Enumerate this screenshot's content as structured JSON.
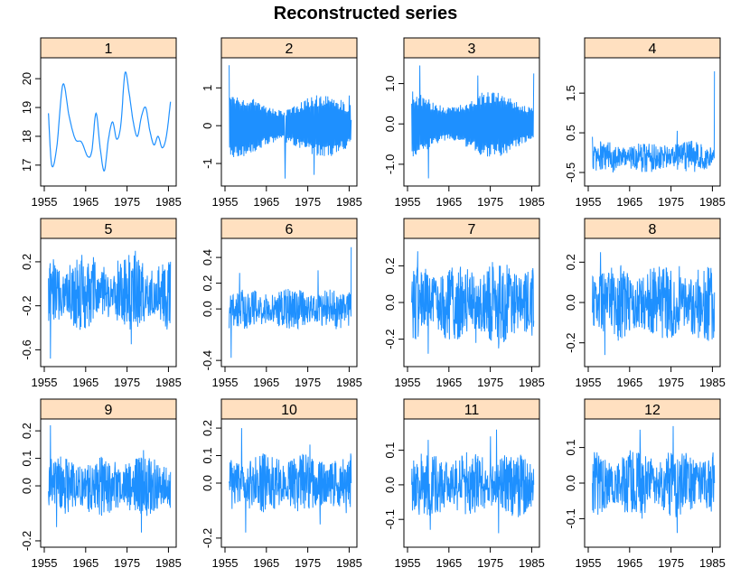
{
  "title": "Reconstructed series",
  "colors": {
    "line": "#1E90FF",
    "strip": "#FFE0C0",
    "axis": "#000000"
  },
  "chart_data": {
    "type": "line",
    "title": "Reconstructed series",
    "x_ticks": [
      "1955",
      "1965",
      "1975",
      "1985"
    ],
    "x_range": [
      1955,
      1986
    ],
    "panels": [
      {
        "label": "1",
        "ylim": [
          16.4,
          20.6
        ],
        "y_ticks": [
          "17",
          "18",
          "19",
          "20"
        ],
        "knots": [
          [
            1956.0,
            18.8
          ],
          [
            1956.8,
            17.0
          ],
          [
            1958.0,
            17.6
          ],
          [
            1959.5,
            19.8
          ],
          [
            1961.0,
            18.7
          ],
          [
            1962.5,
            17.9
          ],
          [
            1964.0,
            17.8
          ],
          [
            1965.5,
            17.3
          ],
          [
            1966.5,
            17.5
          ],
          [
            1967.5,
            18.8
          ],
          [
            1968.5,
            17.6
          ],
          [
            1969.5,
            16.8
          ],
          [
            1970.5,
            17.9
          ],
          [
            1971.5,
            18.5
          ],
          [
            1972.5,
            17.9
          ],
          [
            1973.5,
            18.4
          ],
          [
            1974.5,
            20.2
          ],
          [
            1975.5,
            19.5
          ],
          [
            1976.5,
            18.5
          ],
          [
            1977.5,
            18.0
          ],
          [
            1978.5,
            18.7
          ],
          [
            1979.5,
            19.0
          ],
          [
            1980.5,
            18.2
          ],
          [
            1981.5,
            17.7
          ],
          [
            1982.5,
            18.0
          ],
          [
            1983.5,
            17.6
          ],
          [
            1984.5,
            18.0
          ],
          [
            1985.5,
            19.2
          ]
        ]
      },
      {
        "label": "2",
        "ylim": [
          -1.5,
          1.7
        ],
        "y_ticks": [
          "-1",
          "0",
          "1"
        ],
        "osc": {
          "amp": 0.85,
          "mean": 0.0,
          "start": 1.6,
          "end": 0.15,
          "spikes": [
            [
              1969.5,
              -1.4
            ],
            [
              1976.5,
              -1.3
            ],
            [
              1985.0,
              0.8
            ]
          ]
        }
      },
      {
        "label": "3",
        "ylim": [
          -1.45,
          1.55
        ],
        "y_ticks": [
          "-1.0",
          "0.0",
          "1.0"
        ],
        "osc": {
          "amp": 0.85,
          "mean": 0.0,
          "start": 0.5,
          "end": 1.25,
          "spikes": [
            [
              1958.0,
              1.45
            ],
            [
              1960.0,
              -1.35
            ],
            [
              1972.0,
              1.2
            ]
          ]
        }
      },
      {
        "label": "4",
        "ylim": [
          -0.75,
          2.3
        ],
        "y_ticks": [
          "-0.5",
          "0.5",
          "1.5"
        ],
        "noise": {
          "amp": 0.25,
          "mean": -0.1,
          "start": 0.4,
          "end": 2.05,
          "spikes": [
            [
              1976.5,
              0.55
            ],
            [
              1961.0,
              -0.5
            ]
          ]
        }
      },
      {
        "label": "5",
        "ylim": [
          -0.72,
          0.38
        ],
        "y_ticks": [
          "-0.6",
          "-0.2",
          "0.2"
        ],
        "noise": {
          "amp": 0.22,
          "mean": -0.08,
          "start": 0.05,
          "end": 0.2,
          "spikes": [
            [
              1956.5,
              -0.68
            ],
            [
              1977.0,
              0.3
            ],
            [
              1976.0,
              -0.55
            ]
          ]
        }
      },
      {
        "label": "6",
        "ylim": [
          -0.42,
          0.52
        ],
        "y_ticks": [
          "-0.4",
          "0.0",
          "0.2",
          "0.4"
        ],
        "noise": {
          "amp": 0.1,
          "mean": 0.0,
          "start": -0.15,
          "end": 0.48,
          "spikes": [
            [
              1956.5,
              -0.38
            ],
            [
              1958.5,
              0.28
            ],
            [
              1977.5,
              0.3
            ]
          ]
        }
      },
      {
        "label": "7",
        "ylim": [
          -0.33,
          0.33
        ],
        "y_ticks": [
          "-0.2",
          "0.0",
          "0.2"
        ],
        "noise": {
          "amp": 0.14,
          "mean": 0.0,
          "start": 0.0,
          "end": -0.1,
          "spikes": [
            [
              1957.5,
              0.28
            ],
            [
              1960.0,
              -0.28
            ],
            [
              1971.5,
              -0.22
            ],
            [
              1975.5,
              0.22
            ],
            [
              1977.0,
              -0.25
            ]
          ]
        }
      },
      {
        "label": "8",
        "ylim": [
          -0.3,
          0.3
        ],
        "y_ticks": [
          "-0.2",
          "0.0",
          "0.2"
        ],
        "noise": {
          "amp": 0.12,
          "mean": 0.0,
          "start": -0.05,
          "end": 0.05,
          "spikes": [
            [
              1958.0,
              0.25
            ],
            [
              1959.0,
              -0.26
            ],
            [
              1977.0,
              0.18
            ]
          ]
        }
      },
      {
        "label": "9",
        "ylim": [
          -0.21,
          0.23
        ],
        "y_ticks": [
          "-0.2",
          "0.0",
          "0.1",
          "0.2"
        ],
        "noise": {
          "amp": 0.07,
          "mean": 0.0,
          "start": -0.02,
          "end": 0.05,
          "spikes": [
            [
              1956.5,
              0.22
            ],
            [
              1958.0,
              -0.15
            ],
            [
              1978.5,
              -0.17
            ],
            [
              1979.0,
              0.13
            ]
          ]
        }
      },
      {
        "label": "10",
        "ylim": [
          -0.22,
          0.22
        ],
        "y_ticks": [
          "-0.2",
          "0.0",
          "0.1",
          "0.2"
        ],
        "noise": {
          "amp": 0.07,
          "mean": 0.0,
          "start": 0.0,
          "end": 0.0,
          "spikes": [
            [
              1959.0,
              0.2
            ],
            [
              1960.0,
              -0.18
            ],
            [
              1975.5,
              0.14
            ],
            [
              1978.0,
              -0.15
            ]
          ]
        }
      },
      {
        "label": "11",
        "ylim": [
          -0.17,
          0.18
        ],
        "y_ticks": [
          "-0.1",
          "0.0",
          "0.1"
        ],
        "noise": {
          "amp": 0.06,
          "mean": 0.0,
          "start": 0.0,
          "end": 0.0,
          "spikes": [
            [
              1960.0,
              0.13
            ],
            [
              1960.5,
              -0.13
            ],
            [
              1975.0,
              0.14
            ],
            [
              1976.5,
              0.16
            ],
            [
              1977.0,
              -0.14
            ]
          ]
        }
      },
      {
        "label": "12",
        "ylim": [
          -0.17,
          0.17
        ],
        "y_ticks": [
          "-0.1",
          "0.0",
          "0.1"
        ],
        "noise": {
          "amp": 0.06,
          "mean": 0.0,
          "start": 0.0,
          "end": 0.0,
          "spikes": [
            [
              1967.5,
              0.15
            ],
            [
              1968.0,
              -0.1
            ],
            [
              1975.5,
              0.16
            ],
            [
              1976.5,
              -0.14
            ]
          ]
        }
      }
    ]
  }
}
